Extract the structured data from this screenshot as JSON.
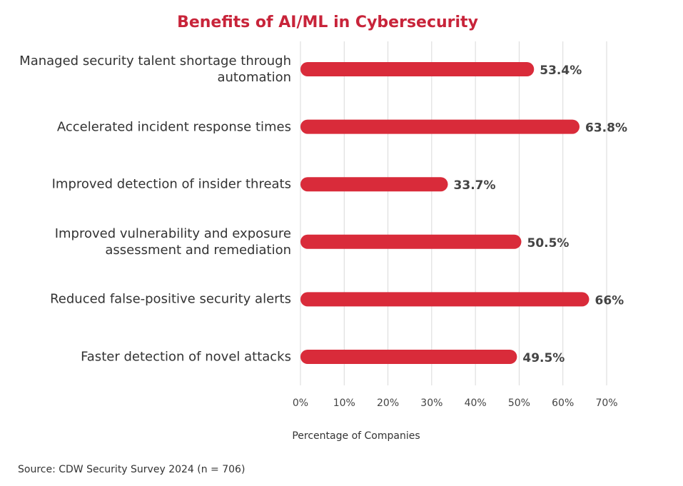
{
  "chart_data": {
    "type": "barh",
    "title": "Benefits of AI/ML in Cybersecurity",
    "categories": [
      "Managed security talent shortage through automation",
      "Accelerated incident response times",
      "Improved detection of insider threats",
      "Improved vulnerability and exposure assessment and remediation",
      "Reduced false-positive security alerts",
      "Faster detection of novel attacks"
    ],
    "values": [
      53.4,
      63.8,
      33.7,
      50.5,
      66,
      49.5
    ],
    "value_labels": [
      "53.4%",
      "63.8%",
      "33.7%",
      "50.5%",
      "66%",
      "49.5%"
    ],
    "color": "#d92b3a",
    "xlim": [
      0,
      70
    ],
    "xticks": [
      {
        "value": 0,
        "label": "0%"
      },
      {
        "value": 10,
        "label": "10%"
      },
      {
        "value": 20,
        "label": "20%"
      },
      {
        "value": 30,
        "label": "30%"
      },
      {
        "value": 40,
        "label": "40%"
      },
      {
        "value": 50,
        "label": "50%"
      },
      {
        "value": 60,
        "label": "60%"
      },
      {
        "value": 70,
        "label": "70%"
      }
    ],
    "grid": true,
    "xlabel": "Percentage of Companies",
    "source": "Source: CDW Security Survey 2024 (n = 706)"
  }
}
